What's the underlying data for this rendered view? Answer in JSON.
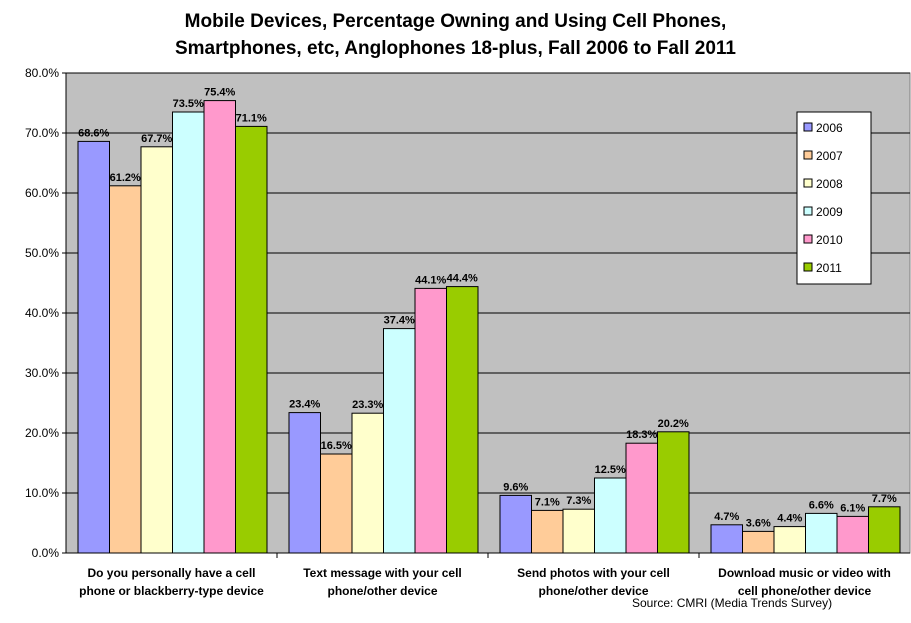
{
  "title_line1": "Mobile Devices, Percentage Owning and Using Cell Phones,",
  "title_line2": "Smartphones, etc, Anglophones 18-plus, Fall 2006 to Fall 2011",
  "source": "Source:  CMRI (Media Trends Survey)",
  "chart_data": {
    "type": "bar",
    "title": "Mobile Devices, Percentage Owning and Using Cell Phones, Smartphones, etc, Anglophones 18-plus, Fall 2006 to Fall 2011",
    "categories": [
      [
        "Do you personally have a cell",
        "phone or blackberry-type device"
      ],
      [
        "Text message with your cell",
        "phone/other device"
      ],
      [
        "Send photos with your cell",
        "phone/other device"
      ],
      [
        "Download music or video with",
        "cell phone/other device"
      ]
    ],
    "series": [
      {
        "name": "2006",
        "color": "#9999ff",
        "values": [
          68.6,
          23.4,
          9.6,
          4.7
        ],
        "labels": [
          "68.6%",
          "23.4%",
          "9.6%",
          "4.7%"
        ]
      },
      {
        "name": "2007",
        "color": "#ffcc99",
        "values": [
          61.2,
          16.5,
          7.1,
          3.6
        ],
        "labels": [
          "61.2%",
          "16.5%",
          "7.1%",
          "3.6%"
        ]
      },
      {
        "name": "2008",
        "color": "#ffffcc",
        "values": [
          67.7,
          23.3,
          7.3,
          4.4
        ],
        "labels": [
          "67.7%",
          "23.3%",
          "7.3%",
          "4.4%"
        ]
      },
      {
        "name": "2009",
        "color": "#ccffff",
        "values": [
          73.5,
          37.4,
          12.5,
          6.6
        ],
        "labels": [
          "73.5%",
          "37.4%",
          "12.5%",
          "6.6%"
        ]
      },
      {
        "name": "2010",
        "color": "#ff99cc",
        "values": [
          75.4,
          44.1,
          18.3,
          6.1
        ],
        "labels": [
          "75.4%",
          "44.1%",
          "18.3%",
          "6.1%"
        ]
      },
      {
        "name": "2011",
        "color": "#99cc00",
        "values": [
          71.1,
          44.4,
          20.2,
          7.7
        ],
        "labels": [
          "71.1%",
          "44.4%",
          "20.2%",
          "7.7%"
        ]
      }
    ],
    "yticks": [
      "0.0%",
      "10.0%",
      "20.0%",
      "30.0%",
      "40.0%",
      "50.0%",
      "60.0%",
      "70.0%",
      "80.0%"
    ],
    "ylim": [
      0,
      80
    ],
    "grid": true,
    "plot_background": "#c0c0c0",
    "legend": "right, inside plot area"
  }
}
